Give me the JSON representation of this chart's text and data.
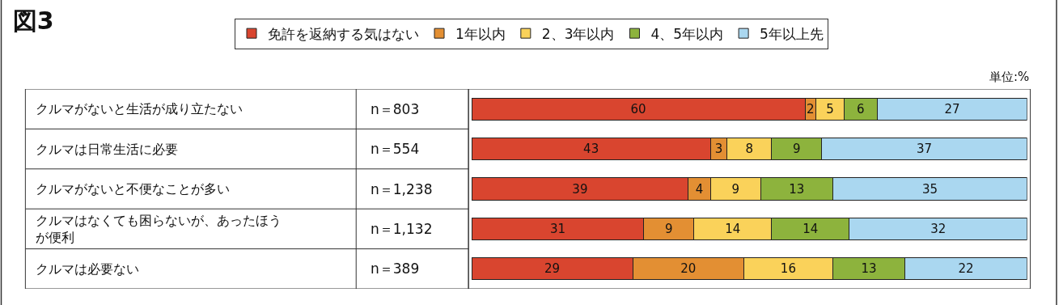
{
  "chart_data": {
    "type": "bar",
    "orientation": "horizontal",
    "stacked": true,
    "title": "図3",
    "categories": [
      "クルマがないと生活が成り立たない",
      "クルマは日常生活に必要",
      "クルマがないと不便なことが多い",
      "クルマはなくても困らないが、あったほうが便利",
      "クルマは必要ない"
    ],
    "series": [
      {
        "name": "免許を返納する気はない",
        "color": "#d9452f",
        "values": [
          60,
          43,
          39,
          31,
          29
        ]
      },
      {
        "name": "1年以内",
        "color": "#e38f33",
        "values": [
          2,
          3,
          4,
          9,
          20
        ]
      },
      {
        "name": "2、3年以内",
        "color": "#fad25a",
        "values": [
          5,
          8,
          9,
          14,
          16
        ]
      },
      {
        "name": "4、5年以内",
        "color": "#8db33d",
        "values": [
          6,
          9,
          13,
          14,
          13
        ]
      },
      {
        "name": "5年以上先",
        "color": "#aad7f0",
        "values": [
          27,
          37,
          35,
          32,
          22
        ]
      }
    ],
    "xlim": [
      0,
      100
    ],
    "tick_labels": false,
    "data_labels": true,
    "legend": "top",
    "annotations": [
      "n＝803",
      "n＝554",
      "n＝1,238",
      "n＝1,132",
      "n＝389",
      "単位:%"
    ]
  }
}
